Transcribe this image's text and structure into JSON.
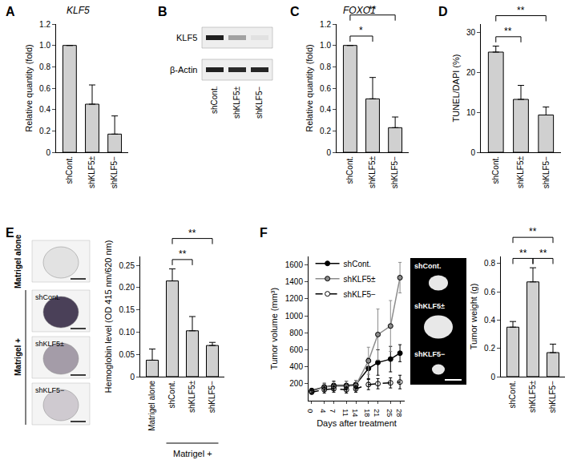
{
  "chart_data": [
    {
      "panel": "A",
      "type": "bar",
      "title": "KLF5",
      "categories": [
        "shCont.",
        "shKLF5±",
        "shKLF5−"
      ],
      "values": [
        1.0,
        0.45,
        0.17
      ],
      "errors": [
        0,
        0.18,
        0.17
      ],
      "y_label": "Relative quantity (fold)",
      "ylim": [
        0,
        1.2
      ],
      "yticks": [
        0,
        0.2,
        0.4,
        0.6,
        0.8,
        {
          "value": 1,
          "label": "1.0"
        },
        1.2
      ],
      "color": "#d0d0d0"
    },
    {
      "panel": "C",
      "type": "bar",
      "title": "FOXO1",
      "categories": [
        "shCont.",
        "shKLF5±",
        "shKLF5−"
      ],
      "values": [
        1.0,
        0.5,
        0.23
      ],
      "errors": [
        0,
        0.2,
        0.1
      ],
      "y_label": "Relative quantity (fold)",
      "ylim": [
        0,
        1.2
      ],
      "yticks": [
        0,
        0.2,
        0.4,
        0.6,
        0.8,
        {
          "value": 1,
          "label": "1.0"
        },
        1.2
      ],
      "color": "#d0d0d0",
      "significance": [
        {
          "from": 0,
          "to": 1,
          "label": "*"
        },
        {
          "from": 0,
          "to": 2,
          "label": "**"
        }
      ]
    },
    {
      "panel": "D",
      "type": "bar",
      "categories": [
        "shCont.",
        "shKLF5±",
        "shKLF5−"
      ],
      "values": [
        25,
        13.2,
        9.3
      ],
      "errors": [
        1.5,
        3.5,
        2
      ],
      "y_label": "TUNEL/DAPI (%)",
      "ylim": [
        0,
        32
      ],
      "yticks": [
        0,
        10,
        20,
        30
      ],
      "color": "#d0d0d0",
      "significance": [
        {
          "from": 0,
          "to": 1,
          "label": "**"
        },
        {
          "from": 0,
          "to": 2,
          "label": "**"
        }
      ]
    },
    {
      "panel": "E",
      "type": "bar",
      "categories": [
        "Matrigel alone",
        "shCont.",
        "shKLF5±",
        "shKLF5−"
      ],
      "values": [
        0.037,
        0.215,
        0.103,
        0.07
      ],
      "errors": [
        0.025,
        0.027,
        0.032,
        0.007
      ],
      "y_label": "Hemoglobin level (OD 415 nm/620 nm)",
      "ylim": [
        0,
        0.27
      ],
      "yticks": [
        0,
        0.05,
        {
          "value": 0.1,
          "label": "0.10"
        },
        0.15,
        {
          "value": 0.2,
          "label": "0.20"
        },
        0.25
      ],
      "color": "#d0d0d0",
      "group_label": {
        "text": "Matrigel +",
        "from": 1,
        "to": 3
      },
      "significance": [
        {
          "from": 1,
          "to": 2,
          "label": "**"
        },
        {
          "from": 1,
          "to": 3,
          "label": "**"
        }
      ]
    },
    {
      "panel": "F",
      "type": "line",
      "x": [
        0,
        4,
        7,
        11,
        14,
        18,
        21,
        25,
        28
      ],
      "x_label": "Days after treatment",
      "y_label": "Tumor volume (mm³)",
      "xlim": [
        -1,
        29.5
      ],
      "xticks": [
        0,
        4,
        7,
        11,
        14,
        18,
        21,
        25,
        28
      ],
      "ylim": [
        0,
        1700
      ],
      "yticks": [
        200,
        400,
        600,
        800,
        1000,
        1200,
        1400,
        1600
      ],
      "legend": "upper left",
      "series": [
        {
          "name": "shCont.",
          "color": "#000000",
          "marker": "circle",
          "line_style": "solid",
          "values": [
            120,
            160,
            180,
            180,
            190,
            380,
            450,
            490,
            560
          ],
          "errors": [
            20,
            40,
            50,
            50,
            50,
            120,
            150,
            150,
            100
          ]
        },
        {
          "name": "shKLF5±",
          "color": "#8c8c8c",
          "marker": "circle",
          "line_style": "solid",
          "values": [
            110,
            160,
            170,
            170,
            180,
            470,
            780,
            880,
            1450
          ],
          "errors": [
            20,
            50,
            50,
            60,
            60,
            160,
            300,
            300,
            180
          ]
        },
        {
          "name": "shKLF5−",
          "color": "#000000",
          "marker": "circle-open",
          "line_style": "dashed",
          "values": [
            100,
            130,
            140,
            130,
            140,
            190,
            200,
            210,
            220
          ],
          "errors": [
            20,
            40,
            40,
            40,
            40,
            60,
            60,
            60,
            80
          ]
        }
      ]
    },
    {
      "type": "bar",
      "categories": [
        "shCont.",
        "shKLF5±",
        "shKLF5−"
      ],
      "values": [
        0.35,
        0.67,
        0.17
      ],
      "errors": [
        0.04,
        0.1,
        0.06
      ],
      "y_label": "Tumor weight (g)",
      "ylim": [
        0,
        0.85
      ],
      "yticks": [
        0,
        0.2,
        0.4,
        0.6,
        0.8
      ],
      "color": "#d0d0d0",
      "significance": [
        {
          "from": 0,
          "to": 1,
          "label": "**"
        },
        {
          "from": 1,
          "to": 2,
          "label": "**"
        },
        {
          "from": 0,
          "to": 2,
          "label": "**"
        }
      ]
    }
  ],
  "blot": {
    "panel": "B",
    "rows": [
      "KLF5",
      "β-Actin"
    ],
    "lanes": [
      "shCont.",
      "shKLF5±",
      "shKLF5−"
    ]
  },
  "photos_E": {
    "alone": "Matrigel alone",
    "plus": "Matrigel +",
    "rows": [
      "shCont.",
      "shKLF5±",
      "shKLF5−"
    ]
  },
  "photos_F": {
    "rows": [
      "shCont.",
      "shKLF5±",
      "shKLF5−"
    ]
  }
}
